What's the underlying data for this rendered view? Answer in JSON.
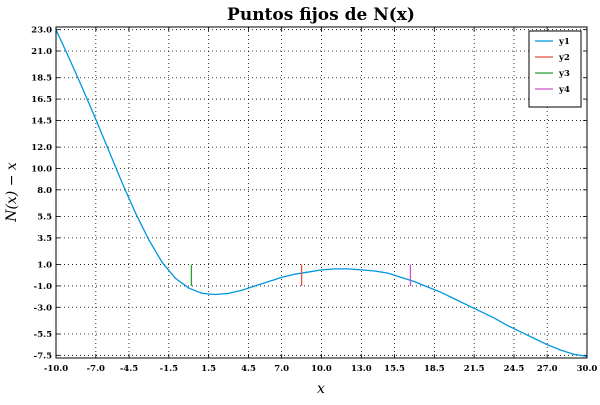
{
  "chart_data": {
    "type": "line",
    "title": "Puntos fijos de N(x)",
    "xlabel": "x",
    "ylabel": "N(x) − x",
    "xlim": [
      -10.0,
      30.0
    ],
    "ylim": [
      -7.75,
      23.25
    ],
    "x_ticks": [
      "-10.0",
      "-7.0",
      "-4.5",
      "-1.5",
      "1.5",
      "4.5",
      "7.0",
      "10.0",
      "13.0",
      "15.5",
      "18.5",
      "21.5",
      "24.5",
      "27.0",
      "30.0"
    ],
    "y_ticks": [
      "23.0",
      "21.0",
      "18.5",
      "16.5",
      "14.5",
      "12.0",
      "10.0",
      "8.0",
      "5.5",
      "3.5",
      "1.0",
      "-1.0",
      "-3.0",
      "-5.5",
      "-7.5"
    ],
    "grid": true,
    "legend_position": "top-right",
    "series": [
      {
        "name": "y1",
        "color": "#0096e0",
        "x": [
          -10,
          -9,
          -8,
          -7,
          -6,
          -5,
          -4,
          -3,
          -2,
          -1,
          0,
          1,
          2,
          3,
          4,
          5,
          6,
          7,
          8,
          9,
          10,
          11,
          12,
          13,
          14,
          15,
          16,
          17,
          18,
          19,
          20,
          21,
          22,
          23,
          24,
          25,
          26,
          27,
          28,
          29,
          30
        ],
        "y": [
          23.0,
          20.3,
          17.5,
          14.6,
          11.6,
          8.6,
          5.8,
          3.3,
          1.2,
          -0.3,
          -1.2,
          -1.7,
          -1.8,
          -1.7,
          -1.4,
          -1.0,
          -0.6,
          -0.2,
          0.1,
          0.3,
          0.5,
          0.6,
          0.6,
          0.5,
          0.4,
          0.2,
          -0.2,
          -0.6,
          -1.1,
          -1.6,
          -2.2,
          -2.8,
          -3.4,
          -4.0,
          -4.7,
          -5.3,
          -5.9,
          -6.5,
          -7.0,
          -7.4,
          -7.6
        ]
      },
      {
        "name": "y2",
        "color": "#e0533a",
        "x": [
          8.5,
          8.5
        ],
        "y": [
          -1.0,
          1.0
        ]
      },
      {
        "name": "y3",
        "color": "#2ca02c",
        "x": [
          0.2,
          0.2
        ],
        "y": [
          -1.0,
          1.0
        ]
      },
      {
        "name": "y4",
        "color": "#cc55cc",
        "x": [
          16.7,
          16.7
        ],
        "y": [
          -1.0,
          1.0
        ]
      }
    ]
  }
}
